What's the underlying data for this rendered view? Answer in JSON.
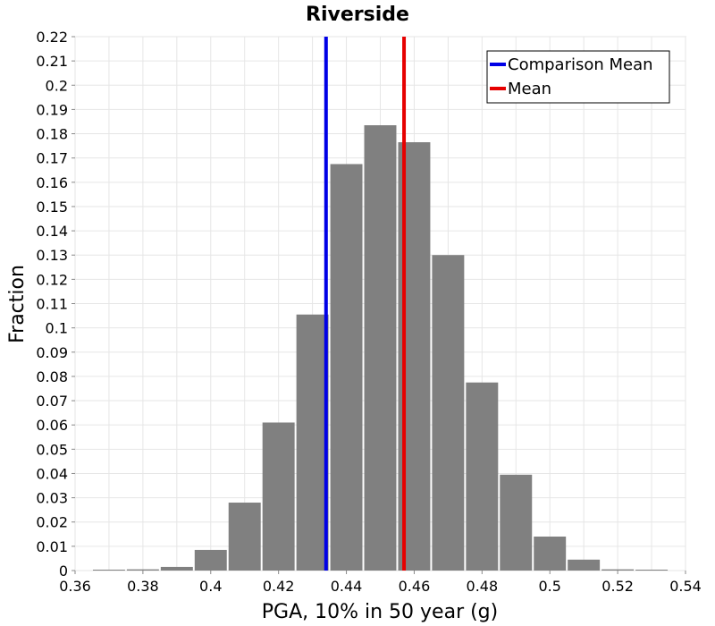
{
  "chart_data": {
    "type": "bar",
    "title": "Riverside",
    "xlabel": "PGA, 10% in 50 year (g)",
    "ylabel": "Fraction",
    "xlim": [
      0.36,
      0.54
    ],
    "ylim": [
      0,
      0.22
    ],
    "x_ticks": [
      "0.36",
      "0.38",
      "0.4",
      "0.42",
      "0.44",
      "0.46",
      "0.48",
      "0.5",
      "0.52",
      "0.54"
    ],
    "y_ticks": [
      "0",
      "0.01",
      "0.02",
      "0.03",
      "0.04",
      "0.05",
      "0.06",
      "0.07",
      "0.08",
      "0.09",
      "0.1",
      "0.11",
      "0.12",
      "0.13",
      "0.14",
      "0.15",
      "0.16",
      "0.17",
      "0.18",
      "0.19",
      "0.2",
      "0.21",
      "0.22"
    ],
    "grid": true,
    "bar_color": "#808080",
    "bins": [
      {
        "x": 0.37,
        "value": 0.0
      },
      {
        "x": 0.38,
        "value": 0.0005
      },
      {
        "x": 0.39,
        "value": 0.0015
      },
      {
        "x": 0.4,
        "value": 0.0085
      },
      {
        "x": 0.41,
        "value": 0.028
      },
      {
        "x": 0.42,
        "value": 0.061
      },
      {
        "x": 0.43,
        "value": 0.1055
      },
      {
        "x": 0.44,
        "value": 0.1675
      },
      {
        "x": 0.45,
        "value": 0.1835
      },
      {
        "x": 0.46,
        "value": 0.1765
      },
      {
        "x": 0.47,
        "value": 0.13
      },
      {
        "x": 0.48,
        "value": 0.0775
      },
      {
        "x": 0.49,
        "value": 0.0395
      },
      {
        "x": 0.5,
        "value": 0.014
      },
      {
        "x": 0.51,
        "value": 0.0045
      },
      {
        "x": 0.52,
        "value": 0.0005
      },
      {
        "x": 0.53,
        "value": 0.0
      }
    ],
    "bin_width": 0.01,
    "vlines": [
      {
        "name": "Comparison Mean",
        "x": 0.434,
        "color": "#0000e6"
      },
      {
        "name": "Mean",
        "x": 0.457,
        "color": "#e60000"
      }
    ],
    "legend": {
      "placement": "top-right",
      "entries": [
        {
          "label": "Comparison Mean",
          "color": "#0000e6"
        },
        {
          "label": "Mean",
          "color": "#e60000"
        }
      ]
    }
  }
}
